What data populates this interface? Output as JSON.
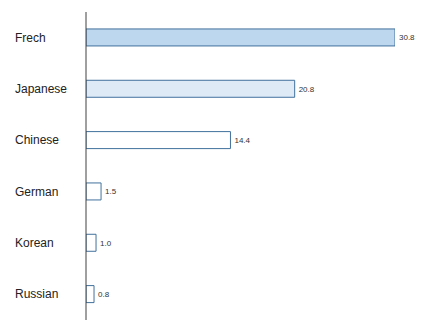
{
  "chart_data": {
    "type": "bar",
    "orientation": "horizontal",
    "categories": [
      "Frech",
      "Japanese",
      "Chinese",
      "German",
      "Korean",
      "Russian"
    ],
    "values": [
      30.8,
      20.8,
      14.4,
      1.5,
      1.0,
      0.8
    ],
    "value_labels": [
      "30.8",
      "20.8",
      "14.4",
      "1.5",
      "1.0",
      "0.8"
    ],
    "colors": [
      "#bdd7ee",
      "#deebf7",
      "#ffffff",
      "#ffffff",
      "#ffffff",
      "#ffffff"
    ],
    "data_labels": true,
    "tick_labels": "y",
    "grid": false
  }
}
